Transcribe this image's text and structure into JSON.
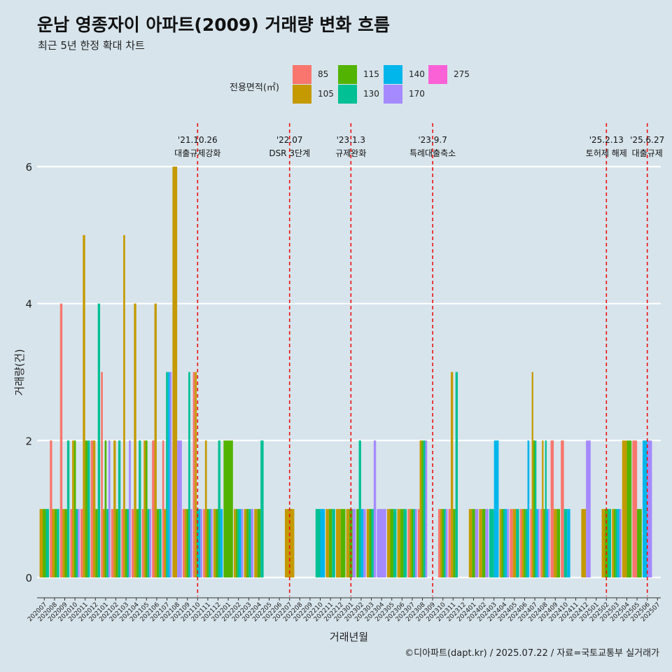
{
  "header": {
    "title": "운남 영종자이 아파트(2009) 거래량 변화 흐름",
    "subtitle": "최근 5년 한정 확대 차트"
  },
  "caption": "©디아파트(dapt.kr) / 2025.07.22 / 자료=국토교통부 실거래가",
  "legend": {
    "title": "전용면적(㎡)",
    "items": [
      {
        "label": "85",
        "color": "#f8766d"
      },
      {
        "label": "105",
        "color": "#c49a00"
      },
      {
        "label": "115",
        "color": "#53b400"
      },
      {
        "label": "130",
        "color": "#00c094"
      },
      {
        "label": "140",
        "color": "#00b6eb"
      },
      {
        "label": "170",
        "color": "#a58aff"
      },
      {
        "label": "275",
        "color": "#fb61d7"
      }
    ]
  },
  "chart_data": {
    "type": "bar",
    "title": "운남 영종자이 아파트(2009) 거래량 변화 흐름",
    "xlabel": "거래년월",
    "ylabel": "거래량(건)",
    "ylim": [
      0,
      6
    ],
    "yticks": [
      0,
      2,
      4,
      6
    ],
    "grid": true,
    "categories": [
      "202007",
      "202008",
      "202009",
      "202010",
      "202011",
      "202012",
      "202101",
      "202102",
      "202103",
      "202104",
      "202105",
      "202106",
      "202107",
      "202108",
      "202109",
      "202110",
      "202111",
      "202112",
      "202201",
      "202202",
      "202203",
      "202204",
      "202205",
      "202206",
      "202207",
      "202208",
      "202209",
      "202210",
      "202211",
      "202212",
      "202301",
      "202302",
      "202303",
      "202304",
      "202305",
      "202306",
      "202307",
      "202308",
      "202309",
      "202310",
      "202311",
      "202312",
      "202401",
      "202402",
      "202403",
      "202404",
      "202405",
      "202406",
      "202407",
      "202408",
      "202409",
      "202410",
      "202411",
      "202412",
      "202501",
      "202502",
      "202503",
      "202504",
      "202505",
      "202506",
      "202507"
    ],
    "series": [
      {
        "name": "85",
        "color": "#f8766d",
        "values": [
          0,
          2,
          4,
          1,
          1,
          2,
          3,
          1,
          1,
          1,
          1,
          2,
          2,
          0,
          1,
          3,
          1,
          0,
          0,
          0,
          0,
          0,
          0,
          0,
          0,
          0,
          0,
          0,
          0,
          0,
          0,
          0,
          0,
          0,
          0,
          0,
          1,
          1,
          0,
          1,
          1,
          0,
          0,
          0,
          0,
          0,
          1,
          1,
          1,
          1,
          2,
          2,
          0,
          0,
          0,
          0,
          0,
          0,
          2,
          0,
          0
        ]
      },
      {
        "name": "105",
        "color": "#c49a00",
        "values": [
          1,
          1,
          1,
          2,
          5,
          2,
          1,
          2,
          5,
          4,
          2,
          4,
          1,
          6,
          1,
          3,
          2,
          1,
          0,
          1,
          1,
          1,
          0,
          0,
          1,
          0,
          0,
          0,
          1,
          1,
          1,
          0,
          1,
          0,
          1,
          1,
          1,
          2,
          0,
          1,
          3,
          0,
          1,
          1,
          0,
          1,
          1,
          1,
          3,
          2,
          1,
          0,
          0,
          1,
          0,
          1,
          1,
          2,
          0,
          0,
          0
        ]
      },
      {
        "name": "115",
        "color": "#53b400",
        "values": [
          1,
          1,
          1,
          2,
          2,
          1,
          2,
          1,
          1,
          1,
          2,
          1,
          0,
          0,
          1,
          0,
          1,
          1,
          2,
          1,
          1,
          1,
          0,
          0,
          0,
          0,
          0,
          0,
          1,
          1,
          1,
          1,
          1,
          0,
          1,
          1,
          1,
          2,
          0,
          1,
          1,
          0,
          1,
          1,
          0,
          1,
          0,
          1,
          2,
          1,
          1,
          0,
          0,
          0,
          0,
          1,
          1,
          2,
          1,
          0,
          0
        ]
      },
      {
        "name": "130",
        "color": "#00c094",
        "values": [
          1,
          1,
          2,
          1,
          2,
          4,
          1,
          2,
          1,
          2,
          1,
          1,
          3,
          0,
          3,
          1,
          1,
          2,
          0,
          1,
          1,
          2,
          0,
          0,
          0,
          0,
          0,
          1,
          1,
          0,
          0,
          2,
          1,
          0,
          1,
          1,
          1,
          2,
          0,
          1,
          3,
          0,
          0,
          0,
          1,
          1,
          1,
          1,
          2,
          2,
          0,
          1,
          0,
          0,
          0,
          1,
          1,
          0,
          0,
          0,
          0
        ]
      },
      {
        "name": "140",
        "color": "#00b6eb",
        "values": [
          0,
          0,
          0,
          0,
          0,
          0,
          0,
          0,
          0,
          0,
          0,
          0,
          3,
          0,
          0,
          1,
          0,
          1,
          0,
          1,
          0,
          0,
          0,
          0,
          0,
          0,
          0,
          1,
          0,
          0,
          0,
          1,
          0,
          0,
          0,
          0,
          0,
          0,
          0,
          0,
          0,
          0,
          0,
          0,
          2,
          1,
          0,
          2,
          1,
          1,
          0,
          1,
          0,
          0,
          0,
          0,
          1,
          0,
          0,
          2,
          0
        ]
      },
      {
        "name": "170",
        "color": "#a58aff",
        "values": [
          0,
          0,
          0,
          1,
          0,
          0,
          2,
          0,
          2,
          0,
          1,
          0,
          3,
          2,
          1,
          1,
          1,
          0,
          0,
          1,
          1,
          0,
          0,
          0,
          0,
          0,
          0,
          0,
          0,
          0,
          1,
          1,
          2,
          1,
          0,
          0,
          1,
          2,
          0,
          1,
          0,
          0,
          1,
          1,
          0,
          1,
          0,
          0,
          1,
          1,
          0,
          0,
          0,
          2,
          0,
          0,
          1,
          0,
          0,
          2,
          0
        ]
      },
      {
        "name": "275",
        "color": "#fb61d7",
        "values": [
          0,
          0,
          0,
          0,
          0,
          0,
          0,
          0,
          0,
          0,
          0,
          0,
          0,
          0,
          0,
          0,
          0,
          0,
          0,
          0,
          0,
          0,
          0,
          0,
          0,
          0,
          0,
          0,
          0,
          0,
          0,
          0,
          0,
          0,
          0,
          0,
          0,
          0,
          0,
          0,
          0,
          0,
          0,
          0,
          0,
          0,
          0,
          0,
          0,
          0,
          0,
          0,
          0,
          0,
          0,
          0,
          0,
          0,
          0,
          0,
          0
        ]
      }
    ],
    "events": [
      {
        "date": "'21.10.26",
        "label": "대출규제강화",
        "category": "202110"
      },
      {
        "date": "'22.07",
        "label": "DSR 3단계",
        "category": "202207"
      },
      {
        "date": "'23.1.3",
        "label": "규제완화",
        "category": "202301"
      },
      {
        "date": "'23.9.7",
        "label": "특례대출축소",
        "category": "202309"
      },
      {
        "date": "'25.2.13",
        "label": "토허제 해제",
        "category": "202502"
      },
      {
        "date": "'25.6.27",
        "label": "대출규제",
        "category": "202506"
      }
    ]
  }
}
